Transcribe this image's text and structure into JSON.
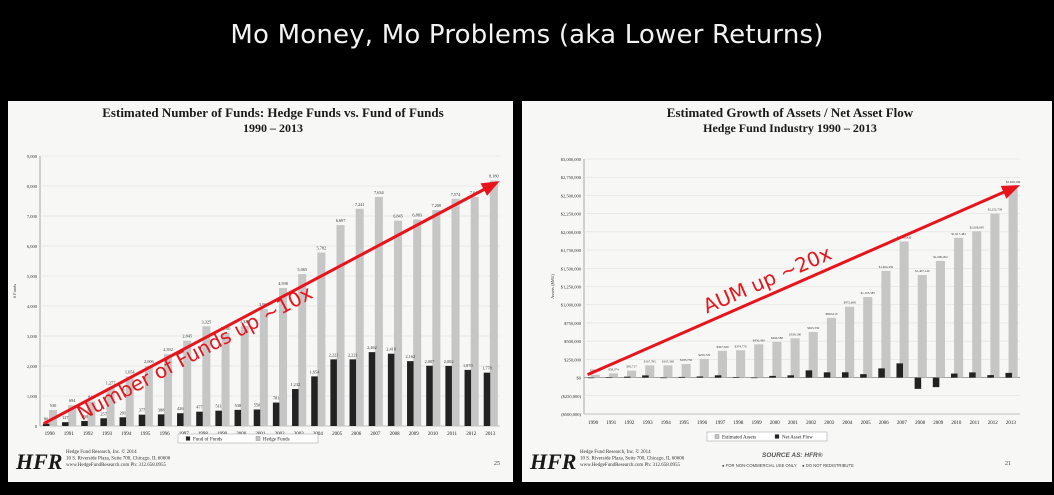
{
  "slide": {
    "title": "Mo Money, Mo Problems (aka Lower Returns)"
  },
  "colors": {
    "annotation_red": "#e8141c",
    "hedge_bar": "#c9c9c9",
    "fof_bar": "#222222",
    "background": "#000000"
  },
  "chart_data": [
    {
      "type": "bar",
      "title": "Estimated Number of Funds: Hedge Funds vs. Fund of Funds",
      "subtitle": "1990 – 2013",
      "ylabel": "# Funds",
      "ylim": [
        0,
        9000
      ],
      "yticks": [
        0,
        1000,
        2000,
        3000,
        4000,
        5000,
        6000,
        7000,
        8000,
        9000
      ],
      "ytick_labels": [
        "0",
        "1,000",
        "2,000",
        "3,000",
        "4,000",
        "5,000",
        "6,000",
        "7,000",
        "8,000",
        "9,000"
      ],
      "categories": [
        "1990",
        "1991",
        "1992",
        "1993",
        "1994",
        "1995",
        "1996",
        "1997",
        "1998",
        "1999",
        "2000",
        "2001",
        "2002",
        "2003",
        "2004",
        "2005",
        "2006",
        "2007",
        "2008",
        "2009",
        "2010",
        "2011",
        "2012",
        "2013"
      ],
      "series": [
        {
          "name": "Fund of Funds",
          "color": "#222222",
          "values": [
            80,
            127,
            168,
            257,
            291,
            377,
            388,
            426,
            477,
            511,
            538,
            550,
            781,
            1232,
            1654,
            2221,
            2221,
            2462,
            2410,
            2162,
            2007,
            2002,
            1870,
            1778
          ],
          "labels": [
            "80",
            "127",
            "168",
            "257",
            "291",
            "377",
            "388",
            "426",
            "477",
            "511",
            "538",
            "550",
            "781",
            "1,232",
            "1,654",
            "2,221",
            "2,221",
            "2,462",
            "2,410",
            "2,162",
            "2,007",
            "2,002",
            "1,870",
            "1,778"
          ]
        },
        {
          "name": "Hedge Funds",
          "color": "#c6c6c6",
          "values": [
            530,
            694,
            817,
            1277,
            1654,
            2006,
            2392,
            2845,
            3325,
            3100,
            3335,
            3904,
            4598,
            5065,
            5782,
            6697,
            7241,
            7634,
            6845,
            6883,
            7200,
            7574,
            7640,
            8180
          ],
          "labels": [
            "530",
            "694",
            "817",
            "1,277",
            "1,654",
            "2,006",
            "2,392",
            "2,845",
            "3,325",
            "3,100",
            "3,335",
            "3,904",
            "4,598",
            "5,065",
            "5,782",
            "6,697",
            "7,241",
            "7,634",
            "6,845",
            "6,883",
            "7,200",
            "7,574",
            "7,640",
            "8,180"
          ]
        }
      ],
      "legend_placement": "bottom",
      "annotation": {
        "text": "Number of Funds up ~10x",
        "from": [
          "1990",
          80
        ],
        "to": [
          "2013",
          8100
        ]
      },
      "footer": {
        "logo": "HFR",
        "lines": [
          "Hedge Fund Research, Inc. © 2014",
          "10 S. Riverside Plaza, Suite 700, Chicago, IL 60606",
          "www.HedgeFundResearch.com    Ph: 312.658.0955"
        ],
        "page": "25"
      }
    },
    {
      "type": "bar",
      "title": "Estimated Growth of Assets / Net Asset Flow",
      "subtitle": "Hedge Fund Industry 1990 – 2013",
      "ylabel": "Assets ($Mil)",
      "ylim": [
        -500000,
        3000000
      ],
      "yticks": [
        -500000,
        -250000,
        0,
        250000,
        500000,
        750000,
        1000000,
        1250000,
        1500000,
        1750000,
        2000000,
        2250000,
        2500000,
        2750000,
        3000000
      ],
      "ytick_labels": [
        "($500,000)",
        "($250,000)",
        "$0",
        "$250,000",
        "$500,000",
        "$750,000",
        "$1,000,000",
        "$1,250,000",
        "$1,500,000",
        "$1,750,000",
        "$2,000,000",
        "$2,250,000",
        "$2,500,000",
        "$2,750,000",
        "$3,000,000"
      ],
      "categories": [
        "1990",
        "1991",
        "1992",
        "1993",
        "1994",
        "1995",
        "1996",
        "1997",
        "1998",
        "1999",
        "2000",
        "2001",
        "2002",
        "2003",
        "2004",
        "2005",
        "2006",
        "2007",
        "2008",
        "2009",
        "2010",
        "2011",
        "2012",
        "2013"
      ],
      "series": [
        {
          "name": "Estimated Assets",
          "color": "#c6c6c6",
          "values": [
            38910,
            58374,
            95717,
            167785,
            167360,
            185750,
            256720,
            367560,
            374770,
            456430,
            490580,
            539100,
            625550,
            820010,
            972608,
            1105385,
            1464456,
            1868420,
            1407140,
            1600202,
            1917483,
            2008095,
            2252739,
            2628109
          ],
          "labels": [
            "$38,910",
            "$58,374",
            "$95,717",
            "$167,785",
            "$167,360",
            "$185,750",
            "$256,720",
            "$367,560",
            "$374,770",
            "$456,430",
            "$490,580",
            "$539,100",
            "$625,550",
            "$820,010",
            "$972,608",
            "$1,105,385",
            "$1,464,456",
            "$1,868,420",
            "$1,407,140",
            "$1,600,202",
            "$1,917,483",
            "$2,008,095",
            "$2,252,739",
            "$2,628,109"
          ]
        },
        {
          "name": "Net Asset Flow",
          "color": "#222222",
          "values": [
            0,
            2000,
            12000,
            30000,
            -1000,
            9000,
            15000,
            31000,
            5000,
            -8000,
            23000,
            31000,
            99000,
            72000,
            73000,
            47000,
            126000,
            195000,
            -155000,
            -131000,
            55000,
            71000,
            34000,
            64000
          ]
        }
      ],
      "legend_placement": "bottom",
      "annotation": {
        "text": "AUM up ~20x",
        "from": [
          "1990",
          40000
        ],
        "to": [
          "2013",
          2620000
        ]
      },
      "footer": {
        "logo": "HFR",
        "lines": [
          "Hedge Fund Research, Inc. © 2014",
          "10 S. Riverside Plaza, Suite 700, Chicago, IL 60606",
          "www.HedgeFundResearch.com    Ph: 312.658.0955"
        ],
        "source_label": "SOURCE AS: HFR®",
        "notes": [
          "FOR NON-COMMERCIAL USE ONLY",
          "DO NOT REDISTRIBUTE"
        ],
        "page": "21"
      }
    }
  ]
}
